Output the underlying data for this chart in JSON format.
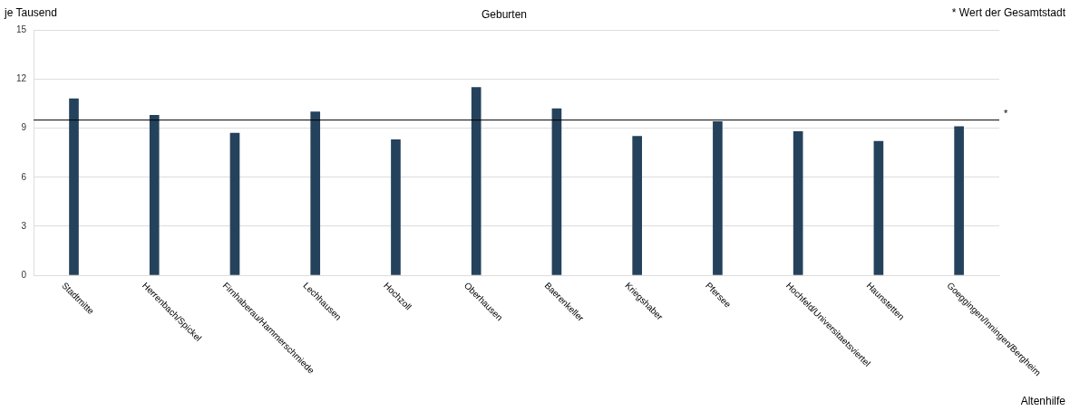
{
  "chart_data": {
    "type": "bar",
    "title": "Geburten",
    "ylabel": "je Tausend",
    "categories": [
      "Stadtmitte",
      "Herrenbach/Spickel",
      "Firnhaberau/Hammerschmiede",
      "Lechhausen",
      "Hochzoll",
      "Oberhausen",
      "Baerenkeller",
      "Kriegshaber",
      "Pfersee",
      "Hochfeld/Universitaetsviertel",
      "Haunstetten",
      "Goeggingen/Inningen/Bergheim"
    ],
    "values": [
      10.8,
      9.8,
      8.7,
      10.0,
      8.3,
      11.5,
      10.2,
      8.5,
      9.4,
      8.8,
      8.2,
      9.1
    ],
    "color": "#24425c",
    "ylim": [
      0,
      15
    ],
    "yticks": [
      0,
      3,
      6,
      9,
      12,
      15
    ],
    "grid": "y",
    "legend": false,
    "ref_lines": [
      {
        "axis": "y",
        "value": 9.5,
        "label": "*",
        "color": "#000000"
      }
    ],
    "annotations": [
      "* Wert der Gesamtstadt",
      "Altenhilfe"
    ]
  }
}
